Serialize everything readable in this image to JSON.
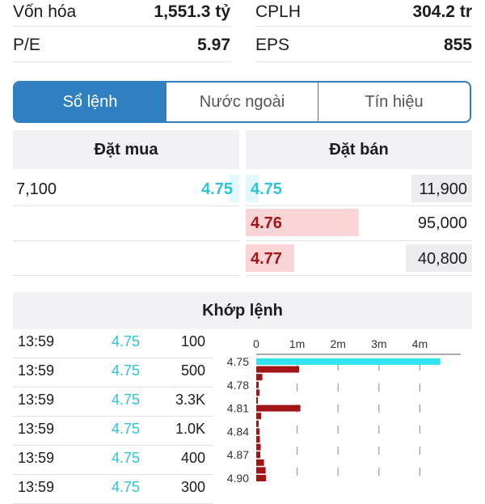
{
  "stats": {
    "rows": [
      {
        "left_label": "Vốn hóa",
        "left_value": "1,551.3 tỷ",
        "right_label": "CPLH",
        "right_value": "304.2 tr"
      },
      {
        "left_label": "P/E",
        "left_value": "5.97",
        "right_label": "EPS",
        "right_value": "855"
      }
    ]
  },
  "tabs": [
    {
      "label": "Sổ lệnh",
      "active": true
    },
    {
      "label": "Nước ngoài",
      "active": false
    },
    {
      "label": "Tín hiệu",
      "active": false
    }
  ],
  "orderbook": {
    "buy_title": "Đặt mua",
    "sell_title": "Đặt bán",
    "buy": [
      {
        "volume": "7,100",
        "price": "4.75"
      }
    ],
    "sell": [
      {
        "price": "4.75",
        "volume": "11,900",
        "level": 0.1
      },
      {
        "price": "4.76",
        "volume": "95,000",
        "level": 1.0
      },
      {
        "price": "4.77",
        "volume": "40,800",
        "level": 0.43
      }
    ]
  },
  "matches": {
    "title": "Khớp lệnh",
    "rows": [
      {
        "time": "13:59",
        "price": "4.75",
        "volume": "100"
      },
      {
        "time": "13:59",
        "price": "4.75",
        "volume": "500"
      },
      {
        "time": "13:59",
        "price": "4.75",
        "volume": "3.3K"
      },
      {
        "time": "13:59",
        "price": "4.75",
        "volume": "1.0K"
      },
      {
        "time": "13:59",
        "price": "4.75",
        "volume": "400"
      },
      {
        "time": "13:59",
        "price": "4.75",
        "volume": "300"
      }
    ]
  },
  "colors": {
    "accent": "#2f7fc1",
    "price_cyan": "#2ec4d6",
    "price_red": "#a31515",
    "chart_cyan": "#33e3f0",
    "chart_red": "#a31515"
  },
  "chart_data": {
    "type": "bar",
    "orientation": "horizontal",
    "xticks": [
      "0",
      "1m",
      "2m",
      "3m",
      "4m"
    ],
    "xlim": [
      0,
      5000000
    ],
    "categories": [
      "4.75",
      "4.76",
      "4.77",
      "4.78",
      "4.79",
      "4.80",
      "4.81",
      "4.82",
      "4.83",
      "4.84",
      "4.85",
      "4.86",
      "4.87",
      "4.88",
      "4.89",
      "4.90"
    ],
    "ytick_labels": [
      "4.75",
      "4.78",
      "4.81",
      "4.84",
      "4.87",
      "4.90"
    ],
    "values": [
      4500000,
      1050000,
      150000,
      60000,
      80000,
      40000,
      1080000,
      120000,
      60000,
      80000,
      90000,
      110000,
      100000,
      190000,
      230000,
      240000
    ],
    "highlight_category": "4.75",
    "grid": true
  }
}
